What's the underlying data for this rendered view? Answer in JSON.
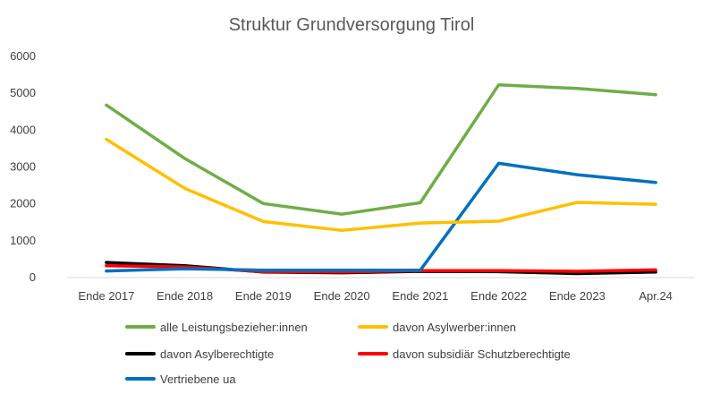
{
  "chart_data": {
    "type": "line",
    "title": "Struktur Grundversorgung Tirol",
    "xlabel": "",
    "ylabel": "",
    "categories": [
      "Ende 2017",
      "Ende 2018",
      "Ende 2019",
      "Ende 2020",
      "Ende 2021",
      "Ende 2022",
      "Ende 2023",
      "Apr.24"
    ],
    "ylim": [
      0,
      6000
    ],
    "yticks": [
      "0",
      "1000",
      "2000",
      "3000",
      "4000",
      "5000",
      "6000"
    ],
    "grid": false,
    "legend_position": "bottom",
    "series": [
      {
        "name": "alle Leistungsbezieher:innen",
        "color": "#70AD47",
        "values": [
          4680,
          3230,
          2010,
          1720,
          2030,
          5230,
          5130,
          4960
        ]
      },
      {
        "name": "davon Asylwerber:innen",
        "color": "#FFC000",
        "values": [
          3750,
          2420,
          1520,
          1280,
          1480,
          1530,
          2040,
          1990
        ]
      },
      {
        "name": "davon Asylberechtigte",
        "color": "#000000",
        "values": [
          410,
          320,
          150,
          130,
          170,
          160,
          110,
          150
        ]
      },
      {
        "name": "davon subsidiär Schutzberechtigte",
        "color": "#FF0000",
        "values": [
          320,
          290,
          160,
          150,
          190,
          190,
          170,
          210
        ]
      },
      {
        "name": "Vertriebene ua",
        "color": "#0070C0",
        "values": [
          180,
          240,
          200,
          200,
          200,
          3100,
          2790,
          2580
        ]
      }
    ]
  }
}
